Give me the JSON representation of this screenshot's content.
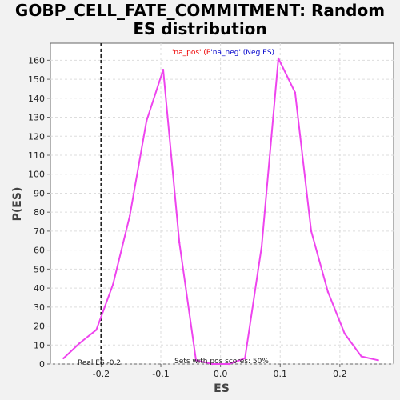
{
  "title": {
    "line1": "GOBP_CELL_FATE_COMMITMENT: Random",
    "line2": "ES distribution"
  },
  "chart_data": {
    "type": "line",
    "xlabel": "ES",
    "ylabel": "P(ES)",
    "xlim": [
      -0.285,
      0.29
    ],
    "ylim": [
      0,
      169
    ],
    "x_ticks": [
      -0.2,
      -0.1,
      0.0,
      0.1,
      0.2
    ],
    "x_tick_labels": [
      "-0.2",
      "-0.1",
      "0.0",
      "0.1",
      "0.2"
    ],
    "y_ticks": [
      0,
      10,
      20,
      30,
      40,
      50,
      60,
      70,
      80,
      90,
      100,
      110,
      120,
      130,
      140,
      150,
      160
    ],
    "grid": true,
    "line_color": "#ee44ee",
    "series": [
      {
        "values_x": [
          -0.263,
          -0.236,
          -0.208,
          -0.18,
          -0.152,
          -0.124,
          -0.096,
          -0.069,
          -0.041
        ],
        "values_y": [
          3,
          11,
          18,
          42,
          78,
          128,
          155,
          64,
          2
        ]
      },
      {
        "values_x": [
          -0.041,
          -0.014,
          0.014,
          0.041
        ],
        "values_y": [
          2,
          0,
          0,
          3
        ]
      },
      {
        "values_x": [
          0.041,
          0.069,
          0.097,
          0.125,
          0.152,
          0.18,
          0.208,
          0.236,
          0.264
        ],
        "values_y": [
          3,
          62,
          161,
          143,
          70,
          38,
          16,
          4,
          2
        ]
      }
    ],
    "real_es": -0.2,
    "real_es_label": "Real ES -0.2",
    "pos_scores_label": "Sets with pos scores: 50%",
    "legend": {
      "pos_text": "'na_pos' (P",
      "pos_color": "#ee0000",
      "neg_text": "'na_neg' (Neg ES)",
      "neg_color": "#0000cc"
    }
  }
}
